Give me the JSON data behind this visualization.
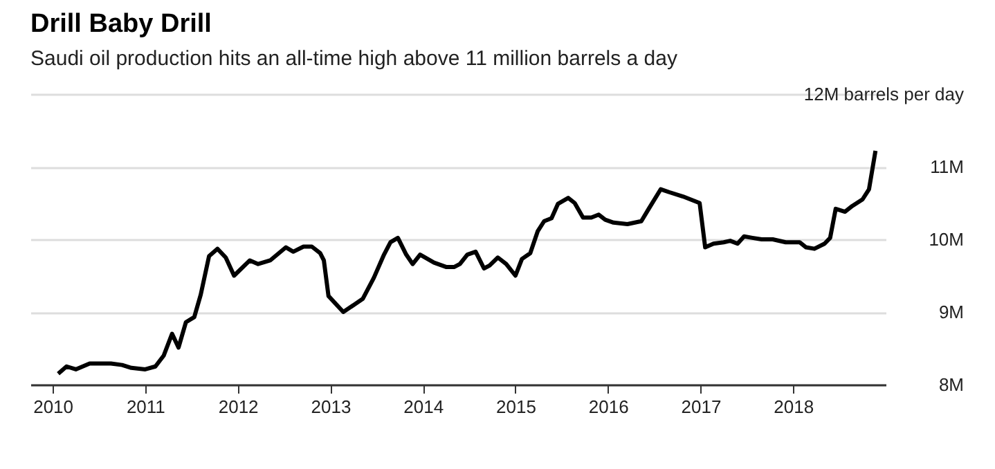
{
  "chart_data": {
    "type": "line",
    "title": "Drill Baby Drill",
    "subtitle": "Saudi oil production hits an all-time high above 11 million barrels a day",
    "x": [
      2010.06,
      2010.15,
      2010.25,
      2010.4,
      2010.63,
      2010.75,
      2010.85,
      2011.0,
      2011.11,
      2011.2,
      2011.29,
      2011.36,
      2011.44,
      2011.53,
      2011.6,
      2011.69,
      2011.78,
      2011.87,
      2011.96,
      2012.13,
      2012.22,
      2012.35,
      2012.52,
      2012.6,
      2012.71,
      2012.8,
      2012.89,
      2012.93,
      2012.98,
      2013.14,
      2013.35,
      2013.47,
      2013.58,
      2013.65,
      2013.73,
      2013.82,
      2013.89,
      2013.97,
      2014.12,
      2014.25,
      2014.34,
      2014.4,
      2014.48,
      2014.57,
      2014.66,
      2014.72,
      2014.81,
      2014.9,
      2015.0,
      2015.07,
      2015.16,
      2015.24,
      2015.31,
      2015.39,
      2015.46,
      2015.57,
      2015.64,
      2015.73,
      2015.82,
      2015.9,
      2015.97,
      2016.06,
      2016.21,
      2016.36,
      2016.44,
      2016.57,
      2016.66,
      2016.81,
      2016.99,
      2017.05,
      2017.14,
      2017.25,
      2017.32,
      2017.4,
      2017.47,
      2017.56,
      2017.66,
      2017.78,
      2017.92,
      2018.07,
      2018.14,
      2018.23,
      2018.34,
      2018.4,
      2018.46,
      2018.56,
      2018.64,
      2018.75,
      2018.82,
      2018.89
    ],
    "series": [
      {
        "color": "#000000",
        "values": [
          8.15,
          8.25,
          8.21,
          8.29,
          8.29,
          8.27,
          8.23,
          8.21,
          8.25,
          8.4,
          8.7,
          8.51,
          8.86,
          8.93,
          9.24,
          9.77,
          9.87,
          9.75,
          9.5,
          9.71,
          9.66,
          9.71,
          9.89,
          9.83,
          9.9,
          9.9,
          9.81,
          9.71,
          9.22,
          9.0,
          9.18,
          9.47,
          9.79,
          9.96,
          10.02,
          9.79,
          9.66,
          9.79,
          9.68,
          9.62,
          9.62,
          9.66,
          9.79,
          9.83,
          9.6,
          9.64,
          9.75,
          9.66,
          9.5,
          9.73,
          9.81,
          10.11,
          10.25,
          10.29,
          10.49,
          10.57,
          10.5,
          10.3,
          10.3,
          10.34,
          10.27,
          10.23,
          10.21,
          10.25,
          10.42,
          10.69,
          10.65,
          10.59,
          10.5,
          9.89,
          9.94,
          9.96,
          9.98,
          9.94,
          10.04,
          10.02,
          10.0,
          10.0,
          9.96,
          9.96,
          9.89,
          9.87,
          9.94,
          10.02,
          10.42,
          10.38,
          10.46,
          10.55,
          10.69,
          11.22
        ]
      }
    ],
    "xlim": [
      2009.76,
      2019.0
    ],
    "xticks": [
      2010,
      2011,
      2012,
      2013,
      2014,
      2015,
      2016,
      2017,
      2018
    ],
    "ylim": [
      8,
      12
    ],
    "yticks": [
      {
        "value": 8,
        "label": "8M"
      },
      {
        "value": 9,
        "label": "9M"
      },
      {
        "value": 10,
        "label": "10M"
      },
      {
        "value": 11,
        "label": "11M"
      },
      {
        "value": 12,
        "label": "12M barrels per day"
      }
    ],
    "grid": "y",
    "legend": false,
    "marker": "none",
    "line_style": "solid"
  }
}
